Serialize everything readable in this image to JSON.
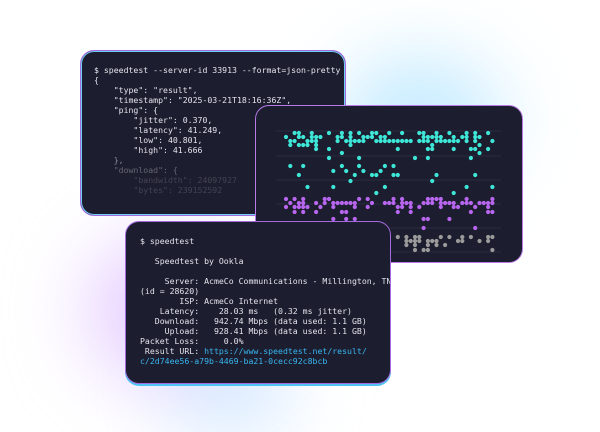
{
  "json_terminal": {
    "command": "$ speedtest --server-id 33913 --format=json-pretty",
    "lines": [
      "{",
      "    \"type\": \"result\",",
      "    \"timestamp\": \"2025-03-21T18:16:36Z\",",
      "    \"ping\": {",
      "        \"jitter\": 0.370,",
      "        \"latency\": 41.249,",
      "        \"low\": 40.801,",
      "        \"high\": 41.666",
      "    },",
      "    \"download\": {",
      "        \"bandwidth\": 24097927",
      "        \"bytes\": 239152592"
    ]
  },
  "plot": {
    "colors": {
      "upper": "#3ee6d8",
      "middle": "#b866f0",
      "lower": "#9a9a9a",
      "grid": "#2a2c40"
    }
  },
  "cli_terminal": {
    "command": "$ speedtest",
    "title": "   Speedtest by Ookla",
    "lines": [
      "     Server: AcmeCo Communications - Millington, TN",
      "(id = 28620)",
      "        ISP: AcmeCo Internet",
      "    Latency:    28.03 ms   (0.32 ms jitter)",
      "   Download:   942.74 Mbps (data used: 1.1 GB)",
      "     Upload:   928.41 Mbps (data used: 1.1 GB)",
      "Packet Loss:     0.0%"
    ],
    "result_label": " Result URL: ",
    "result_url_1": "https://www.speedtest.net/result/",
    "result_url_2": "c/2d74ee56-a79b-4469-ba21-0cecc92c8bcb"
  }
}
